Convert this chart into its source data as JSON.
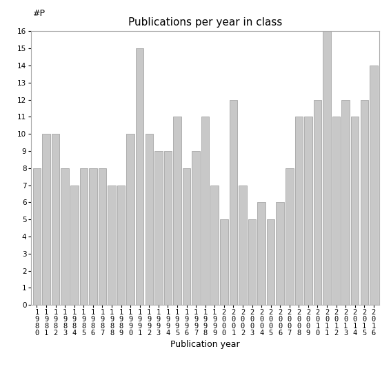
{
  "title": "Publications per year in class",
  "xlabel": "Publication year",
  "ylabel": "#P",
  "years": [
    "1980",
    "1981",
    "1982",
    "1983",
    "1984",
    "1985",
    "1986",
    "1987",
    "1988",
    "1989",
    "1990",
    "1991",
    "1992",
    "1993",
    "1994",
    "1995",
    "1996",
    "1997",
    "1998",
    "1999",
    "2000",
    "2001",
    "2002",
    "2003",
    "2004",
    "2005",
    "2006",
    "2007",
    "2008",
    "2009",
    "2010",
    "2011",
    "2012",
    "2013",
    "2014",
    "2015",
    "2016"
  ],
  "values": [
    8,
    10,
    10,
    8,
    7,
    8,
    8,
    8,
    7,
    7,
    10,
    15,
    10,
    9,
    9,
    11,
    8,
    9,
    11,
    7,
    5,
    12,
    7,
    5,
    6,
    5,
    6,
    8,
    11,
    11,
    12,
    16,
    11,
    12,
    11,
    12,
    14
  ],
  "bar_color": "#c8c8c8",
  "bar_edge_color": "#999999",
  "ylim": [
    0,
    16
  ],
  "yticks": [
    0,
    1,
    2,
    3,
    4,
    5,
    6,
    7,
    8,
    9,
    10,
    11,
    12,
    13,
    14,
    15,
    16
  ],
  "title_fontsize": 11,
  "axis_label_fontsize": 9,
  "tick_fontsize": 7.5,
  "background_color": "#ffffff"
}
